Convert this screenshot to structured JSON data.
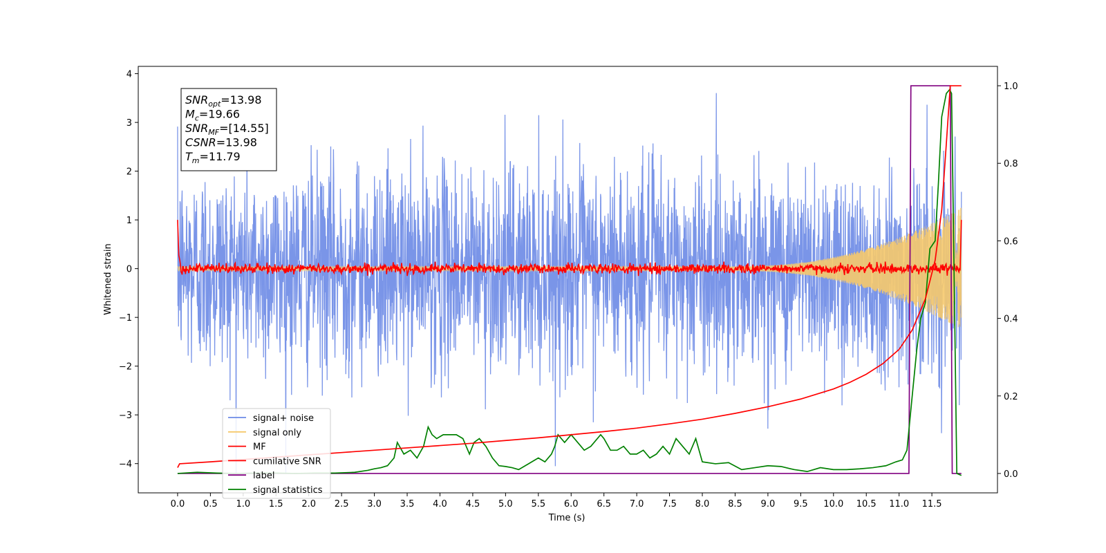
{
  "chart_data": {
    "type": "line",
    "title": "",
    "xlabel": "Time (s)",
    "ylabel_left": "Whitened strain",
    "ylabel_right": "",
    "xlim": [
      -0.6,
      12.5
    ],
    "ylim_left": [
      -4.6,
      4.15
    ],
    "ylim_right": [
      -0.05,
      1.05
    ],
    "x_ticks": [
      "0.0",
      "0.5",
      "1.0",
      "1.5",
      "2.0",
      "2.5",
      "3.0",
      "3.5",
      "4.0",
      "4.5",
      "5.0",
      "5.5",
      "6.0",
      "6.5",
      "7.0",
      "7.5",
      "8.0",
      "8.5",
      "9.0",
      "9.5",
      "10.0",
      "10.5",
      "11.0",
      "11.5"
    ],
    "y_ticks_left": [
      "4",
      "3",
      "2",
      "1",
      "0",
      "−1",
      "−2",
      "−3",
      "−4"
    ],
    "y_ticks_right": [
      "1.0",
      "0.8",
      "0.6",
      "0.4",
      "0.2",
      "0.0"
    ],
    "legend_placement": "lower-left",
    "legend": [
      {
        "label": "signal+ noise",
        "color": "#6b8ae6"
      },
      {
        "label": "signal only",
        "color": "#f6c96b"
      },
      {
        "label": "MF",
        "color": "#ff0000"
      },
      {
        "label": "cumilative SNR",
        "color": "#ff0000"
      },
      {
        "label": "label",
        "color": "#800080"
      },
      {
        "label": "signal statistics",
        "color": "#008000"
      }
    ],
    "annotation": [
      {
        "sym": "SNR",
        "sub": "opt",
        "value": "=13.98"
      },
      {
        "sym": "M",
        "sub": "c",
        "value": "=19.66"
      },
      {
        "sym": "SNR",
        "sub": "MF",
        "value": "=[14.55]"
      },
      {
        "sym": "CSNR",
        "sub": "",
        "value": "=13.98"
      },
      {
        "sym": "T",
        "sub": "m",
        "value": "=11.79"
      }
    ],
    "series": [
      {
        "name": "label",
        "axis": "right",
        "color": "#800080",
        "x": [
          0.0,
          11.15,
          11.18,
          11.78,
          11.81,
          11.95
        ],
        "y": [
          0.0,
          0.0,
          1.0,
          1.0,
          0.0,
          0.0
        ]
      },
      {
        "name": "signal statistics",
        "axis": "right",
        "color": "#008000",
        "x": [
          0.0,
          0.3,
          0.6,
          0.9,
          1.2,
          1.5,
          1.8,
          2.1,
          2.4,
          2.7,
          2.9,
          3.0,
          3.1,
          3.2,
          3.3,
          3.35,
          3.45,
          3.55,
          3.65,
          3.75,
          3.82,
          3.88,
          3.95,
          4.05,
          4.15,
          4.25,
          4.35,
          4.45,
          4.52,
          4.6,
          4.7,
          4.8,
          4.9,
          5.0,
          5.1,
          5.2,
          5.3,
          5.4,
          5.5,
          5.6,
          5.7,
          5.75,
          5.8,
          5.9,
          5.95,
          6.0,
          6.1,
          6.2,
          6.3,
          6.45,
          6.5,
          6.6,
          6.7,
          6.8,
          6.9,
          7.0,
          7.1,
          7.2,
          7.3,
          7.4,
          7.5,
          7.6,
          7.7,
          7.8,
          7.9,
          8.0,
          8.2,
          8.4,
          8.6,
          8.8,
          9.0,
          9.2,
          9.4,
          9.6,
          9.8,
          10.0,
          10.2,
          10.4,
          10.6,
          10.8,
          10.95,
          11.05,
          11.12,
          11.2,
          11.27,
          11.33,
          11.4,
          11.47,
          11.55,
          11.6,
          11.65,
          11.72,
          11.77,
          11.8,
          11.84,
          11.88,
          11.95
        ],
        "y": [
          0.0,
          0.003,
          0.001,
          0.0,
          0.001,
          0.001,
          0.0,
          0.001,
          0.001,
          0.003,
          0.008,
          0.012,
          0.015,
          0.02,
          0.04,
          0.08,
          0.05,
          0.06,
          0.04,
          0.07,
          0.12,
          0.1,
          0.09,
          0.1,
          0.1,
          0.1,
          0.09,
          0.05,
          0.08,
          0.09,
          0.07,
          0.04,
          0.02,
          0.018,
          0.015,
          0.01,
          0.02,
          0.03,
          0.04,
          0.03,
          0.05,
          0.07,
          0.1,
          0.08,
          0.09,
          0.1,
          0.08,
          0.06,
          0.07,
          0.1,
          0.09,
          0.06,
          0.06,
          0.07,
          0.05,
          0.05,
          0.06,
          0.04,
          0.05,
          0.07,
          0.05,
          0.09,
          0.07,
          0.05,
          0.09,
          0.03,
          0.025,
          0.028,
          0.01,
          0.015,
          0.02,
          0.018,
          0.01,
          0.005,
          0.015,
          0.01,
          0.01,
          0.012,
          0.015,
          0.02,
          0.03,
          0.035,
          0.06,
          0.2,
          0.32,
          0.4,
          0.44,
          0.58,
          0.6,
          0.75,
          0.92,
          0.98,
          0.99,
          0.98,
          0.5,
          0.0,
          -0.005
        ]
      },
      {
        "name": "cumilative SNR",
        "axis": "right",
        "color": "#ff0000",
        "x": [
          0.0,
          0.03,
          0.5,
          1.0,
          1.5,
          2.0,
          2.5,
          3.0,
          3.5,
          4.0,
          4.5,
          5.0,
          5.5,
          6.0,
          6.5,
          7.0,
          7.5,
          8.0,
          8.5,
          9.0,
          9.5,
          10.0,
          10.25,
          10.5,
          10.75,
          11.0,
          11.2,
          11.4,
          11.55,
          11.65,
          11.72,
          11.78,
          11.9,
          11.95
        ],
        "y": [
          0.015,
          0.025,
          0.03,
          0.036,
          0.042,
          0.048,
          0.054,
          0.06,
          0.066,
          0.072,
          0.078,
          0.085,
          0.092,
          0.1,
          0.108,
          0.117,
          0.128,
          0.14,
          0.155,
          0.172,
          0.192,
          0.218,
          0.235,
          0.256,
          0.283,
          0.32,
          0.37,
          0.45,
          0.55,
          0.68,
          0.85,
          1.0,
          1.0,
          1.0
        ]
      }
    ]
  }
}
